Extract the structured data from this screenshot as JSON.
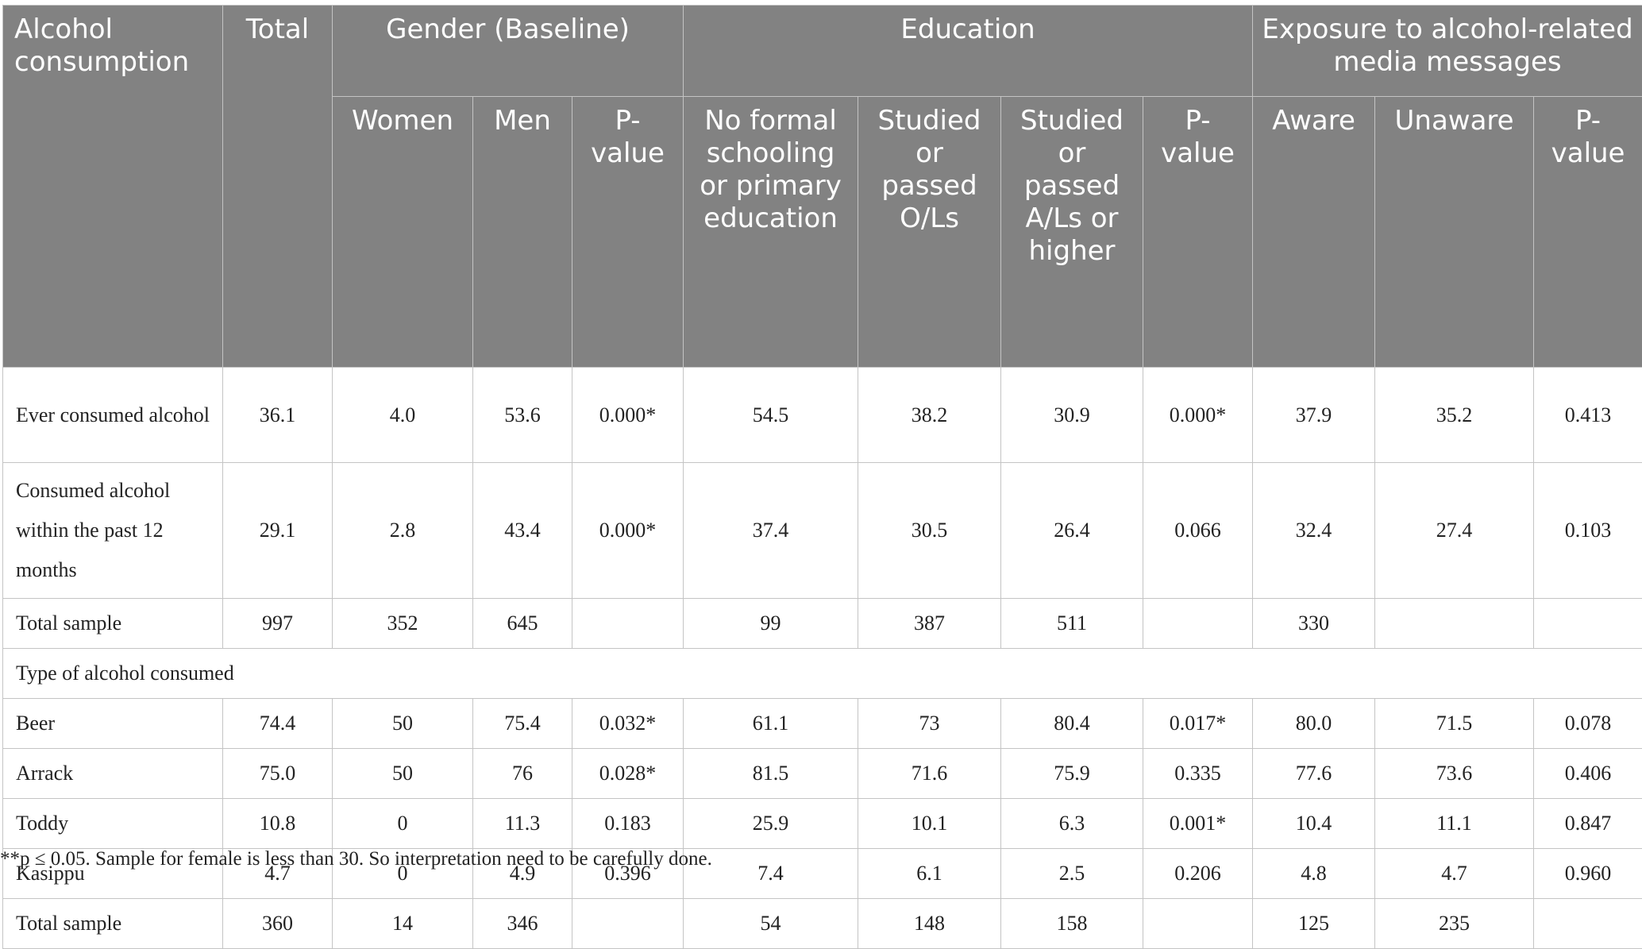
{
  "header": {
    "alcohol_consumption": "Alcohol consumption",
    "total": "Total",
    "gender": "Gender (Baseline)",
    "education": "Education",
    "exposure": "Exposure to alcohol-related media messages",
    "women": "Women",
    "men": "Men",
    "pvalue": "P-value",
    "no_formal": "No formal schooling or primary education",
    "studied_ol": "Studied or passed O/Ls",
    "studied_al": "Studied or passed A/Ls or higher",
    "aware": "Aware",
    "unaware": "Unaware"
  },
  "rows": [
    {
      "label": "Ever consumed alcohol",
      "total": "36.1",
      "women": "4.0",
      "men": "53.6",
      "p_gender": "0.000*",
      "no_formal": "54.5",
      "ol": "38.2",
      "al": "30.9",
      "p_edu": "0.000*",
      "aware": "37.9",
      "unaware": "35.2",
      "p_media": "0.413"
    },
    {
      "label": "Consumed alcohol within the past 12 months",
      "total": "29.1",
      "women": "2.8",
      "men": "43.4",
      "p_gender": "0.000*",
      "no_formal": "37.4",
      "ol": "30.5",
      "al": "26.4",
      "p_edu": "0.066",
      "aware": "32.4",
      "unaware": "27.4",
      "p_media": "0.103"
    },
    {
      "label": "Total sample",
      "total": "997",
      "women": "352",
      "men": "645",
      "p_gender": "",
      "no_formal": "99",
      "ol": "387",
      "al": "511",
      "p_edu": "",
      "aware": "330",
      "unaware": "",
      "p_media": ""
    },
    {
      "label": "Beer",
      "total": "74.4",
      "women": "50",
      "men": "75.4",
      "p_gender": "0.032*",
      "no_formal": "61.1",
      "ol": "73",
      "al": "80.4",
      "p_edu": "0.017*",
      "aware": "80.0",
      "unaware": "71.5",
      "p_media": "0.078"
    },
    {
      "label": "Arrack",
      "total": "75.0",
      "women": "50",
      "men": "76",
      "p_gender": "0.028*",
      "no_formal": "81.5",
      "ol": "71.6",
      "al": "75.9",
      "p_edu": "0.335",
      "aware": "77.6",
      "unaware": "73.6",
      "p_media": "0.406"
    },
    {
      "label": "Toddy",
      "total": "10.8",
      "women": "0",
      "men": "11.3",
      "p_gender": "0.183",
      "no_formal": "25.9",
      "ol": "10.1",
      "al": "6.3",
      "p_edu": "0.001*",
      "aware": "10.4",
      "unaware": "11.1",
      "p_media": "0.847"
    },
    {
      "label": "Kasippu",
      "total": "4.7",
      "women": "0",
      "men": "4.9",
      "p_gender": "0.396",
      "no_formal": "7.4",
      "ol": "6.1",
      "al": "2.5",
      "p_edu": "0.206",
      "aware": "4.8",
      "unaware": "4.7",
      "p_media": "0.960"
    },
    {
      "label": "Total sample",
      "total": "360",
      "women": "14",
      "men": "346",
      "p_gender": "",
      "no_formal": "54",
      "ol": "148",
      "al": "158",
      "p_edu": "",
      "aware": "125",
      "unaware": "235",
      "p_media": ""
    }
  ],
  "section_label": "Type of alcohol consumed",
  "footnote": "**p ≤ 0.05. Sample for female is less than 30. So interpretation need to be carefully done."
}
